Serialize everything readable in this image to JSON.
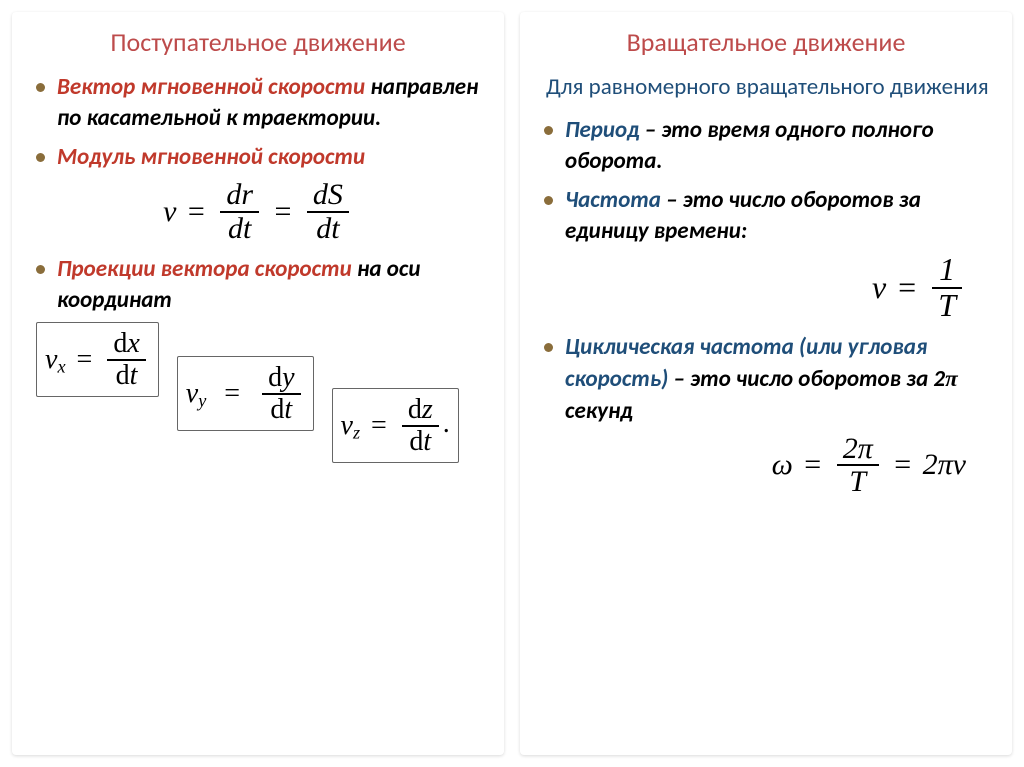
{
  "left": {
    "title": "Поступательное движение",
    "b1_accent": "Вектор мгновенной скорости",
    "b1_rest": " направлен по касательной к траектории.",
    "b2_accent": "Модуль мгновенной скорости",
    "eq1": {
      "lhs": "v",
      "n1": "dr",
      "d1": "dt",
      "n2": "dS",
      "d2": "dt"
    },
    "b3_accent": "Проекции вектора скорости ",
    "b3_rest": " на оси координат",
    "vx": {
      "lhs": "v",
      "sub": "x",
      "n": "dx",
      "d": "dt"
    },
    "vy": {
      "lhs": "v",
      "sub": "y",
      "n": "dy",
      "d": "dt"
    },
    "vz": {
      "lhs": "v",
      "sub": "z",
      "n": "dz",
      "d": "dt"
    }
  },
  "right": {
    "title": "Вращательное движение",
    "subheader": "Для равномерного вращательного движения",
    "b1_accent": "Период",
    "b1_rest": " – это время одного полного оборота.",
    "b2_accent": "Частота",
    "b2_rest": " – это число оборотов за единицу времени:",
    "eq_freq": {
      "lhs": "ν",
      "n": "1",
      "d": "T"
    },
    "b3_accent": "Циклическая частота (или угловая скорость)",
    "b3_rest1": " – это число оборотов за ",
    "b3_two": "2",
    "b3_pi": "π",
    "b3_rest2": " секунд",
    "eq_omega": {
      "lhs": "ω",
      "n": "2π",
      "d": "T",
      "rhs": "2πν"
    }
  },
  "colors": {
    "header": "#bd4b4b",
    "accent_red": "#c0392b",
    "accent_blue": "#1f4e79",
    "bullet_dot": "#8a6d3b",
    "box_border": "#666666"
  }
}
